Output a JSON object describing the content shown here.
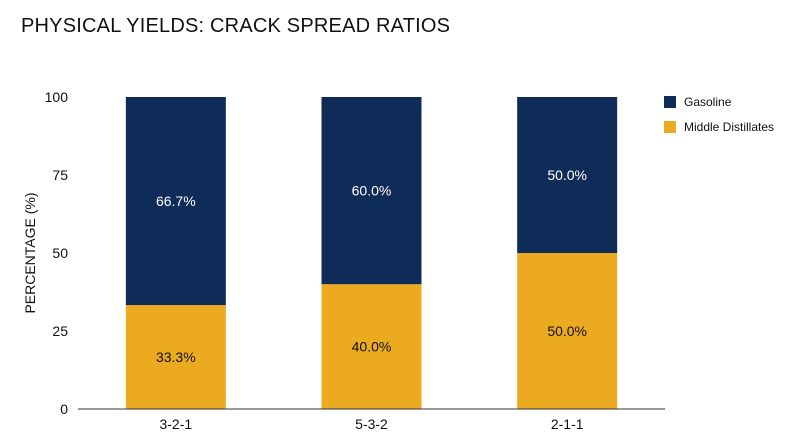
{
  "chart_data": {
    "type": "bar",
    "stacked": true,
    "title": "PHYSICAL YIELDS: CRACK SPREAD RATIOS",
    "xlabel": "",
    "ylabel": "PERCENTAGE (%)",
    "ylim": [
      0,
      100
    ],
    "yticks": [
      0,
      25,
      50,
      75,
      100
    ],
    "categories": [
      "3-2-1",
      "5-3-2",
      "2-1-1"
    ],
    "series": [
      {
        "name": "Middle Distillates",
        "color": "#EBAA20",
        "values": [
          33.3,
          40.0,
          50.0
        ],
        "labels": [
          "33.3%",
          "40.0%",
          "50.0%"
        ]
      },
      {
        "name": "Gasoline",
        "color": "#0F2B57",
        "values": [
          66.7,
          60.0,
          50.0
        ],
        "labels": [
          "66.7%",
          "60.0%",
          "50.0%"
        ]
      }
    ],
    "legend": {
      "position": "right",
      "order": [
        "Gasoline",
        "Middle Distillates"
      ]
    },
    "grid": false
  }
}
